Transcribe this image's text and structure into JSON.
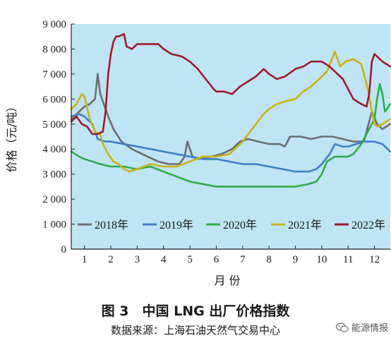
{
  "chart_data": {
    "type": "line",
    "title": "",
    "xlabel": "月 份",
    "ylabel": "价格（元/吨）",
    "ylim": [
      0,
      9000
    ],
    "xlim": [
      0.5,
      12.6
    ],
    "yticks": [
      0,
      1000,
      2000,
      3000,
      4000,
      5000,
      6000,
      7000,
      8000,
      9000
    ],
    "ytick_labels": [
      "0",
      "1 000",
      "2 000",
      "3 000",
      "4 000",
      "5 000",
      "6 000",
      "7 000",
      "8 000",
      "9 000"
    ],
    "xticks": [
      1,
      2,
      3,
      4,
      5,
      6,
      7,
      8,
      9,
      10,
      11,
      12
    ],
    "xtick_labels": [
      "1",
      "2",
      "3",
      "4",
      "5",
      "6",
      "7",
      "8",
      "9",
      "10",
      "11",
      "12"
    ],
    "background_color": "#bfe4f4",
    "legend_position": "bottom",
    "series": [
      {
        "name": "2018年",
        "color": "#6d6e71",
        "x": [
          0.5,
          0.8,
          1.0,
          1.2,
          1.4,
          1.5,
          1.6,
          1.7,
          1.9,
          2.1,
          2.4,
          2.8,
          3.0,
          3.4,
          3.8,
          4.2,
          4.6,
          4.8,
          4.9,
          5.0,
          5.1,
          5.3,
          5.8,
          6.2,
          6.6,
          6.9,
          7.2,
          7.6,
          8.0,
          8.4,
          8.6,
          8.8,
          9.2,
          9.6,
          10.0,
          10.4,
          10.8,
          11.2,
          11.6,
          11.9,
          12.1,
          12.3,
          12.6
        ],
        "y": [
          5200,
          5500,
          5700,
          5800,
          6000,
          7000,
          6200,
          5900,
          5300,
          4800,
          4300,
          4000,
          3900,
          3700,
          3500,
          3400,
          3400,
          3700,
          4300,
          4000,
          3700,
          3600,
          3700,
          3800,
          4000,
          4300,
          4400,
          4300,
          4200,
          4200,
          4100,
          4500,
          4500,
          4400,
          4500,
          4500,
          4400,
          4300,
          4300,
          5500,
          5000,
          4800,
          5000
        ]
      },
      {
        "name": "2019年",
        "color": "#3f7fc5",
        "x": [
          0.5,
          0.8,
          1.0,
          1.3,
          1.5,
          1.8,
          2.0,
          2.5,
          3.0,
          3.5,
          4.0,
          4.5,
          5.0,
          5.5,
          6.0,
          6.5,
          7.0,
          7.5,
          8.0,
          8.5,
          9.0,
          9.5,
          9.8,
          10.0,
          10.3,
          10.5,
          10.8,
          11.0,
          11.3,
          11.6,
          12.0,
          12.3,
          12.6
        ],
        "y": [
          5300,
          5400,
          5300,
          5000,
          4400,
          4300,
          4300,
          4200,
          4100,
          4000,
          3900,
          3800,
          3700,
          3600,
          3600,
          3500,
          3400,
          3400,
          3300,
          3200,
          3100,
          3100,
          3200,
          3400,
          3800,
          4200,
          4100,
          4100,
          4200,
          4300,
          4300,
          4200,
          3900
        ]
      },
      {
        "name": "2020年",
        "color": "#2eae4a",
        "x": [
          0.5,
          0.8,
          1.0,
          1.3,
          1.6,
          2.0,
          2.5,
          3.0,
          3.5,
          4.0,
          4.5,
          5.0,
          5.5,
          6.0,
          6.5,
          7.0,
          7.5,
          8.0,
          8.5,
          9.0,
          9.5,
          9.8,
          10.0,
          10.2,
          10.5,
          10.8,
          11.0,
          11.2,
          11.5,
          11.8,
          12.0,
          12.1,
          12.2,
          12.3,
          12.4,
          12.6
        ],
        "y": [
          3900,
          3700,
          3600,
          3500,
          3400,
          3300,
          3300,
          3200,
          3300,
          3100,
          2900,
          2700,
          2600,
          2500,
          2500,
          2500,
          2500,
          2500,
          2500,
          2500,
          2600,
          2700,
          3000,
          3500,
          3700,
          3700,
          3700,
          3800,
          4200,
          4800,
          5200,
          6000,
          6600,
          6200,
          5500,
          5800
        ]
      },
      {
        "name": "2021年",
        "color": "#c9b21a",
        "x": [
          0.5,
          0.7,
          0.9,
          1.0,
          1.2,
          1.4,
          1.6,
          1.7,
          1.9,
          2.1,
          2.3,
          2.5,
          2.7,
          3.0,
          3.5,
          4.0,
          4.5,
          5.0,
          5.5,
          6.0,
          6.5,
          7.0,
          7.5,
          7.8,
          8.0,
          8.3,
          8.6,
          9.0,
          9.3,
          9.6,
          9.9,
          10.2,
          10.5,
          10.7,
          10.9,
          11.2,
          11.5,
          11.7,
          11.8,
          11.9,
          12.0,
          12.1,
          12.3,
          12.6
        ],
        "y": [
          5600,
          5800,
          6200,
          6100,
          5200,
          4700,
          4600,
          4200,
          3800,
          3500,
          3400,
          3200,
          3100,
          3200,
          3400,
          3300,
          3300,
          3500,
          3700,
          3700,
          3800,
          4300,
          5000,
          5400,
          5600,
          5800,
          5900,
          6000,
          6300,
          6500,
          6800,
          7100,
          7900,
          7300,
          7500,
          7600,
          7400,
          6600,
          6100,
          5500,
          5000,
          4900,
          5000,
          5200
        ]
      },
      {
        "name": "2022年",
        "color": "#9b1b2c",
        "x": [
          0.5,
          0.7,
          0.9,
          1.1,
          1.3,
          1.5,
          1.7,
          1.8,
          1.9,
          2.0,
          2.1,
          2.2,
          2.3,
          2.5,
          2.6,
          2.8,
          3.0,
          3.4,
          3.8,
          4.0,
          4.3,
          4.7,
          5.0,
          5.3,
          5.6,
          5.9,
          6.0,
          6.3,
          6.6,
          6.9,
          7.2,
          7.5,
          7.8,
          8.0,
          8.3,
          8.6,
          9.0,
          9.3,
          9.6,
          10.0,
          10.3,
          10.6,
          10.8,
          11.0,
          11.2,
          11.5,
          11.7,
          11.8,
          11.9,
          12.0,
          12.1,
          12.3,
          12.6
        ],
        "y": [
          5100,
          5300,
          5000,
          4900,
          4600,
          4600,
          4700,
          5500,
          7000,
          7800,
          8300,
          8500,
          8500,
          8600,
          8100,
          8000,
          8200,
          8200,
          8200,
          8000,
          7800,
          7700,
          7500,
          7200,
          6800,
          6400,
          6300,
          6300,
          6200,
          6500,
          6700,
          6900,
          7200,
          7000,
          6800,
          6900,
          7200,
          7300,
          7500,
          7500,
          7300,
          7000,
          6800,
          6400,
          6000,
          5800,
          5700,
          6200,
          7500,
          7800,
          7700,
          7500,
          7300
        ]
      }
    ]
  },
  "caption": {
    "title": "图 3　中国 LNG 出厂价格指数",
    "source": "数据来源：上海石油天然气交易中心"
  },
  "watermark": {
    "text": "能源情报",
    "icon": "wechat-icon"
  }
}
